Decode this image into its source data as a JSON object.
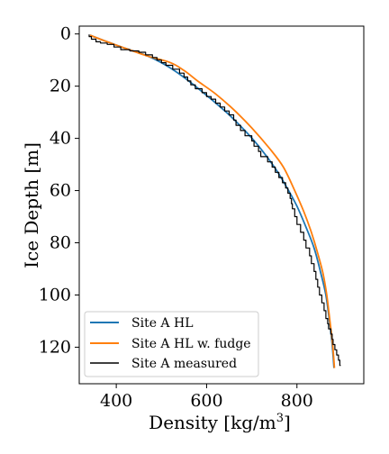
{
  "chart_data": {
    "type": "line",
    "title": "",
    "xlabel": "Density [kg/m",
    "xlabel_superscript": "3",
    "xlabel_suffix": "]",
    "ylabel": "Ice Depth [m]",
    "xlim": [
      318,
      948
    ],
    "ylim": [
      134,
      -3
    ],
    "y_inverted": true,
    "grid": false,
    "legend_position": "lower-left",
    "x_ticks": [
      400,
      600,
      800
    ],
    "x_tick_labels": [
      "400",
      "600",
      "800"
    ],
    "y_ticks": [
      0,
      20,
      40,
      60,
      80,
      100,
      120
    ],
    "y_tick_labels": [
      "0",
      "20",
      "40",
      "60",
      "80",
      "100",
      "120"
    ],
    "series": [
      {
        "name": "Site A HL",
        "color": "#1f77b4",
        "style": "smooth",
        "points": [
          [
            342,
            0.5
          ],
          [
            380,
            3
          ],
          [
            420,
            5.5
          ],
          [
            470,
            8.5
          ],
          [
            510,
            12
          ],
          [
            545,
            16
          ],
          [
            575,
            20
          ],
          [
            610,
            25
          ],
          [
            650,
            31
          ],
          [
            690,
            38
          ],
          [
            720,
            44
          ],
          [
            750,
            51
          ],
          [
            775,
            58
          ],
          [
            800,
            66
          ],
          [
            820,
            74
          ],
          [
            838,
            82
          ],
          [
            852,
            91
          ],
          [
            864,
            100
          ],
          [
            872,
            110
          ],
          [
            878,
            119
          ],
          [
            882,
            128
          ]
        ]
      },
      {
        "name": "Site A HL w. fudge",
        "color": "#ff7f0e",
        "style": "smooth",
        "points": [
          [
            342,
            0.5
          ],
          [
            380,
            3
          ],
          [
            420,
            5.5
          ],
          [
            470,
            8.5
          ],
          [
            520,
            11
          ],
          [
            550,
            14
          ],
          [
            580,
            18
          ],
          [
            620,
            23
          ],
          [
            660,
            29
          ],
          [
            700,
            36
          ],
          [
            740,
            44
          ],
          [
            770,
            51
          ],
          [
            795,
            60
          ],
          [
            815,
            68
          ],
          [
            832,
            76
          ],
          [
            846,
            84
          ],
          [
            858,
            92
          ],
          [
            866,
            100
          ],
          [
            873,
            110
          ],
          [
            879,
            119
          ],
          [
            883,
            128
          ]
        ]
      },
      {
        "name": "Site A measured",
        "color": "#000000",
        "style": "step",
        "points": [
          [
            340,
            0.2
          ],
          [
            345,
            1
          ],
          [
            355,
            2
          ],
          [
            365,
            3
          ],
          [
            380,
            3.5
          ],
          [
            395,
            4
          ],
          [
            410,
            5
          ],
          [
            430,
            6
          ],
          [
            450,
            6.5
          ],
          [
            465,
            7
          ],
          [
            480,
            8
          ],
          [
            490,
            9
          ],
          [
            500,
            10
          ],
          [
            510,
            11
          ],
          [
            525,
            12
          ],
          [
            540,
            13.5
          ],
          [
            550,
            15
          ],
          [
            558,
            16.5
          ],
          [
            565,
            18
          ],
          [
            575,
            19.5
          ],
          [
            590,
            21
          ],
          [
            600,
            22.5
          ],
          [
            610,
            24
          ],
          [
            620,
            25
          ],
          [
            630,
            26.5
          ],
          [
            640,
            28
          ],
          [
            650,
            29.5
          ],
          [
            660,
            31
          ],
          [
            665,
            33
          ],
          [
            675,
            35
          ],
          [
            685,
            37
          ],
          [
            700,
            39
          ],
          [
            705,
            41
          ],
          [
            715,
            43
          ],
          [
            720,
            45
          ],
          [
            735,
            47
          ],
          [
            745,
            49
          ],
          [
            752,
            51
          ],
          [
            760,
            53
          ],
          [
            768,
            55
          ],
          [
            775,
            57
          ],
          [
            780,
            59
          ],
          [
            785,
            61
          ],
          [
            788,
            63
          ],
          [
            790,
            65
          ],
          [
            795,
            67
          ],
          [
            800,
            70
          ],
          [
            808,
            73
          ],
          [
            815,
            76
          ],
          [
            820,
            79
          ],
          [
            828,
            82
          ],
          [
            832,
            85
          ],
          [
            838,
            88
          ],
          [
            842,
            91
          ],
          [
            846,
            94
          ],
          [
            850,
            97
          ],
          [
            855,
            100
          ],
          [
            860,
            103
          ],
          [
            864,
            106
          ],
          [
            868,
            109
          ],
          [
            870,
            111
          ],
          [
            875,
            113
          ],
          [
            878,
            115
          ],
          [
            880,
            117
          ],
          [
            884,
            119
          ],
          [
            888,
            121
          ],
          [
            892,
            123
          ],
          [
            895,
            125
          ],
          [
            897,
            127
          ]
        ]
      }
    ]
  }
}
